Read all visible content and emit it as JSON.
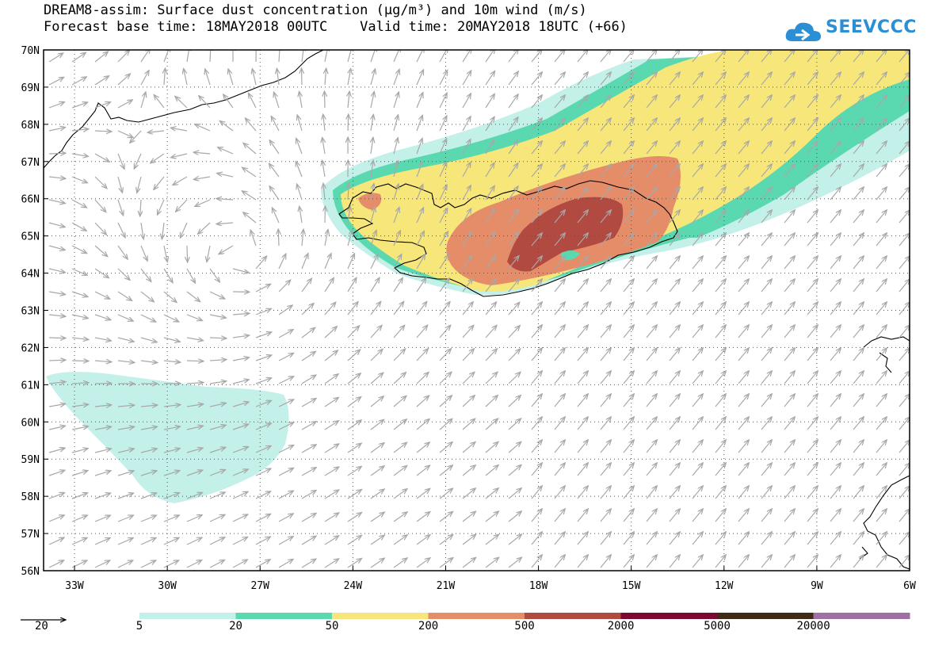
{
  "header": {
    "title_line1": "DREAM8-assim: Surface dust concentration (μg/m³) and 10m wind (m/s)",
    "title_line2": "Forecast base time: 18MAY2018 00UTC    Valid time: 20MAY2018 18UTC (+66)"
  },
  "logo": {
    "text": "SEEVCCC",
    "icon": "cloud-logo-icon",
    "color": "#2b8fd6"
  },
  "map": {
    "lon_range": [
      -34,
      -6
    ],
    "lat_range": [
      56,
      70
    ],
    "lon_ticks": [
      "33W",
      "30W",
      "27W",
      "24W",
      "21W",
      "18W",
      "15W",
      "12W",
      "9W",
      "6W"
    ],
    "lat_ticks": [
      "56N",
      "57N",
      "58N",
      "59N",
      "60N",
      "61N",
      "62N",
      "63N",
      "64N",
      "65N",
      "66N",
      "67N",
      "68N",
      "69N",
      "70N"
    ],
    "grid": "dotted",
    "wind_arrow_color": "#a8a8a8"
  },
  "legend": {
    "wind_reference": "20",
    "levels": [
      "5",
      "20",
      "50",
      "200",
      "500",
      "2000",
      "5000",
      "20000"
    ],
    "colors": [
      "#c3f0e8",
      "#5ad9b1",
      "#f7e67a",
      "#e58c68",
      "#b14a41",
      "#7b0a31",
      "#3f2a16",
      "#a070a4"
    ]
  }
}
